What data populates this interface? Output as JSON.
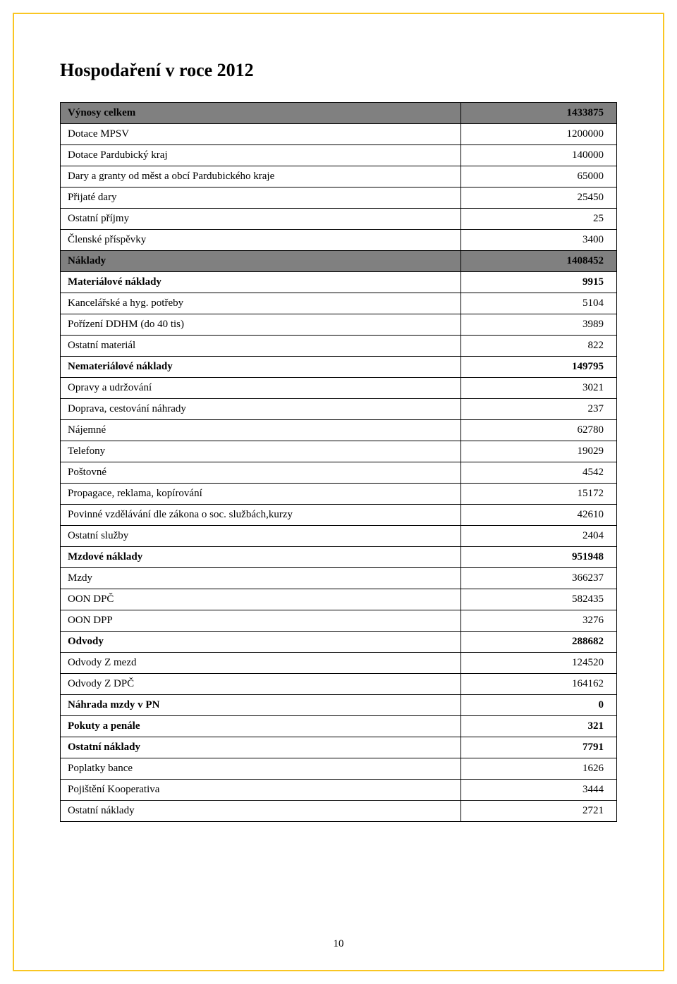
{
  "title": "Hospodaření v roce 2012",
  "page_number": "10",
  "rows": [
    {
      "label": "Výnosy celkem",
      "value": "1433875",
      "style": "header"
    },
    {
      "label": "Dotace MPSV",
      "value": "1200000",
      "style": ""
    },
    {
      "label": "Dotace Pardubický kraj",
      "value": "140000",
      "style": ""
    },
    {
      "label": "Dary a granty od měst a obcí Pardubického kraje",
      "value": "65000",
      "style": ""
    },
    {
      "label": "Přijaté dary",
      "value": "25450",
      "style": ""
    },
    {
      "label": "Ostatní příjmy",
      "value": "25",
      "style": ""
    },
    {
      "label": "Členské příspěvky",
      "value": "3400",
      "style": ""
    },
    {
      "label": "Náklady",
      "value": "1408452",
      "style": "header"
    },
    {
      "label": "Materiálové náklady",
      "value": "9915",
      "style": "bold"
    },
    {
      "label": "Kancelářské a hyg. potřeby",
      "value": "5104",
      "style": ""
    },
    {
      "label": "Pořízení DDHM (do 40 tis)",
      "value": "3989",
      "style": ""
    },
    {
      "label": "Ostatní materiál",
      "value": "822",
      "style": ""
    },
    {
      "label": "Nemateriálové náklady",
      "value": "149795",
      "style": "bold"
    },
    {
      "label": "Opravy a udržování",
      "value": "3021",
      "style": ""
    },
    {
      "label": "Doprava, cestování náhrady",
      "value": "237",
      "style": ""
    },
    {
      "label": "Nájemné",
      "value": "62780",
      "style": ""
    },
    {
      "label": "Telefony",
      "value": "19029",
      "style": ""
    },
    {
      "label": "Poštovné",
      "value": "4542",
      "style": ""
    },
    {
      "label": "Propagace, reklama, kopírování",
      "value": "15172",
      "style": ""
    },
    {
      "label": "Povinné vzdělávání dle zákona o soc. službách,kurzy",
      "value": "42610",
      "style": ""
    },
    {
      "label": "Ostatní služby",
      "value": "2404",
      "style": ""
    },
    {
      "label": "Mzdové náklady",
      "value": "951948",
      "style": "bold"
    },
    {
      "label": "Mzdy",
      "value": "366237",
      "style": ""
    },
    {
      "label": "OON DPČ",
      "value": "582435",
      "style": ""
    },
    {
      "label": "OON DPP",
      "value": "3276",
      "style": ""
    },
    {
      "label": "Odvody",
      "value": "288682",
      "style": "bold"
    },
    {
      "label": " Odvody Z mezd",
      "value": "124520",
      "style": ""
    },
    {
      "label": "Odvody Z DPČ",
      "value": "164162",
      "style": ""
    },
    {
      "label": "Náhrada mzdy v PN",
      "value": "0",
      "style": "bold"
    },
    {
      "label": "Pokuty a penále",
      "value": "321",
      "style": "bold"
    },
    {
      "label": "Ostatní náklady",
      "value": "7791",
      "style": "bold"
    },
    {
      "label": "Poplatky bance",
      "value": "1626",
      "style": ""
    },
    {
      "label": "Pojištění Kooperativa",
      "value": "3444",
      "style": ""
    },
    {
      "label": "Ostatní náklady",
      "value": "2721",
      "style": ""
    }
  ]
}
